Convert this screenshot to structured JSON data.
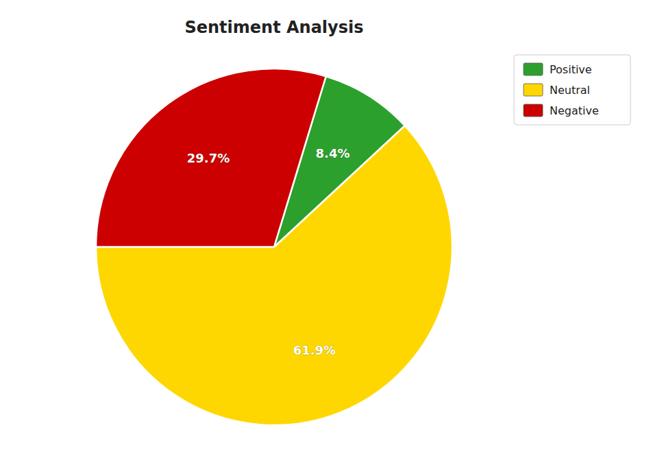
{
  "chart_data": {
    "type": "pie",
    "title": "Sentiment Analysis",
    "categories": [
      "Neutral",
      "Positive",
      "Negative"
    ],
    "values": [
      61.9,
      8.4,
      29.7
    ],
    "value_labels": [
      "61.9%",
      "8.4%",
      "29.7%"
    ],
    "colors": [
      "#FFD700",
      "#2ca02c",
      "#cc0000"
    ],
    "data_labels": true,
    "legend": "upper right",
    "legend_order": [
      "Positive",
      "Neutral",
      "Negative"
    ]
  }
}
